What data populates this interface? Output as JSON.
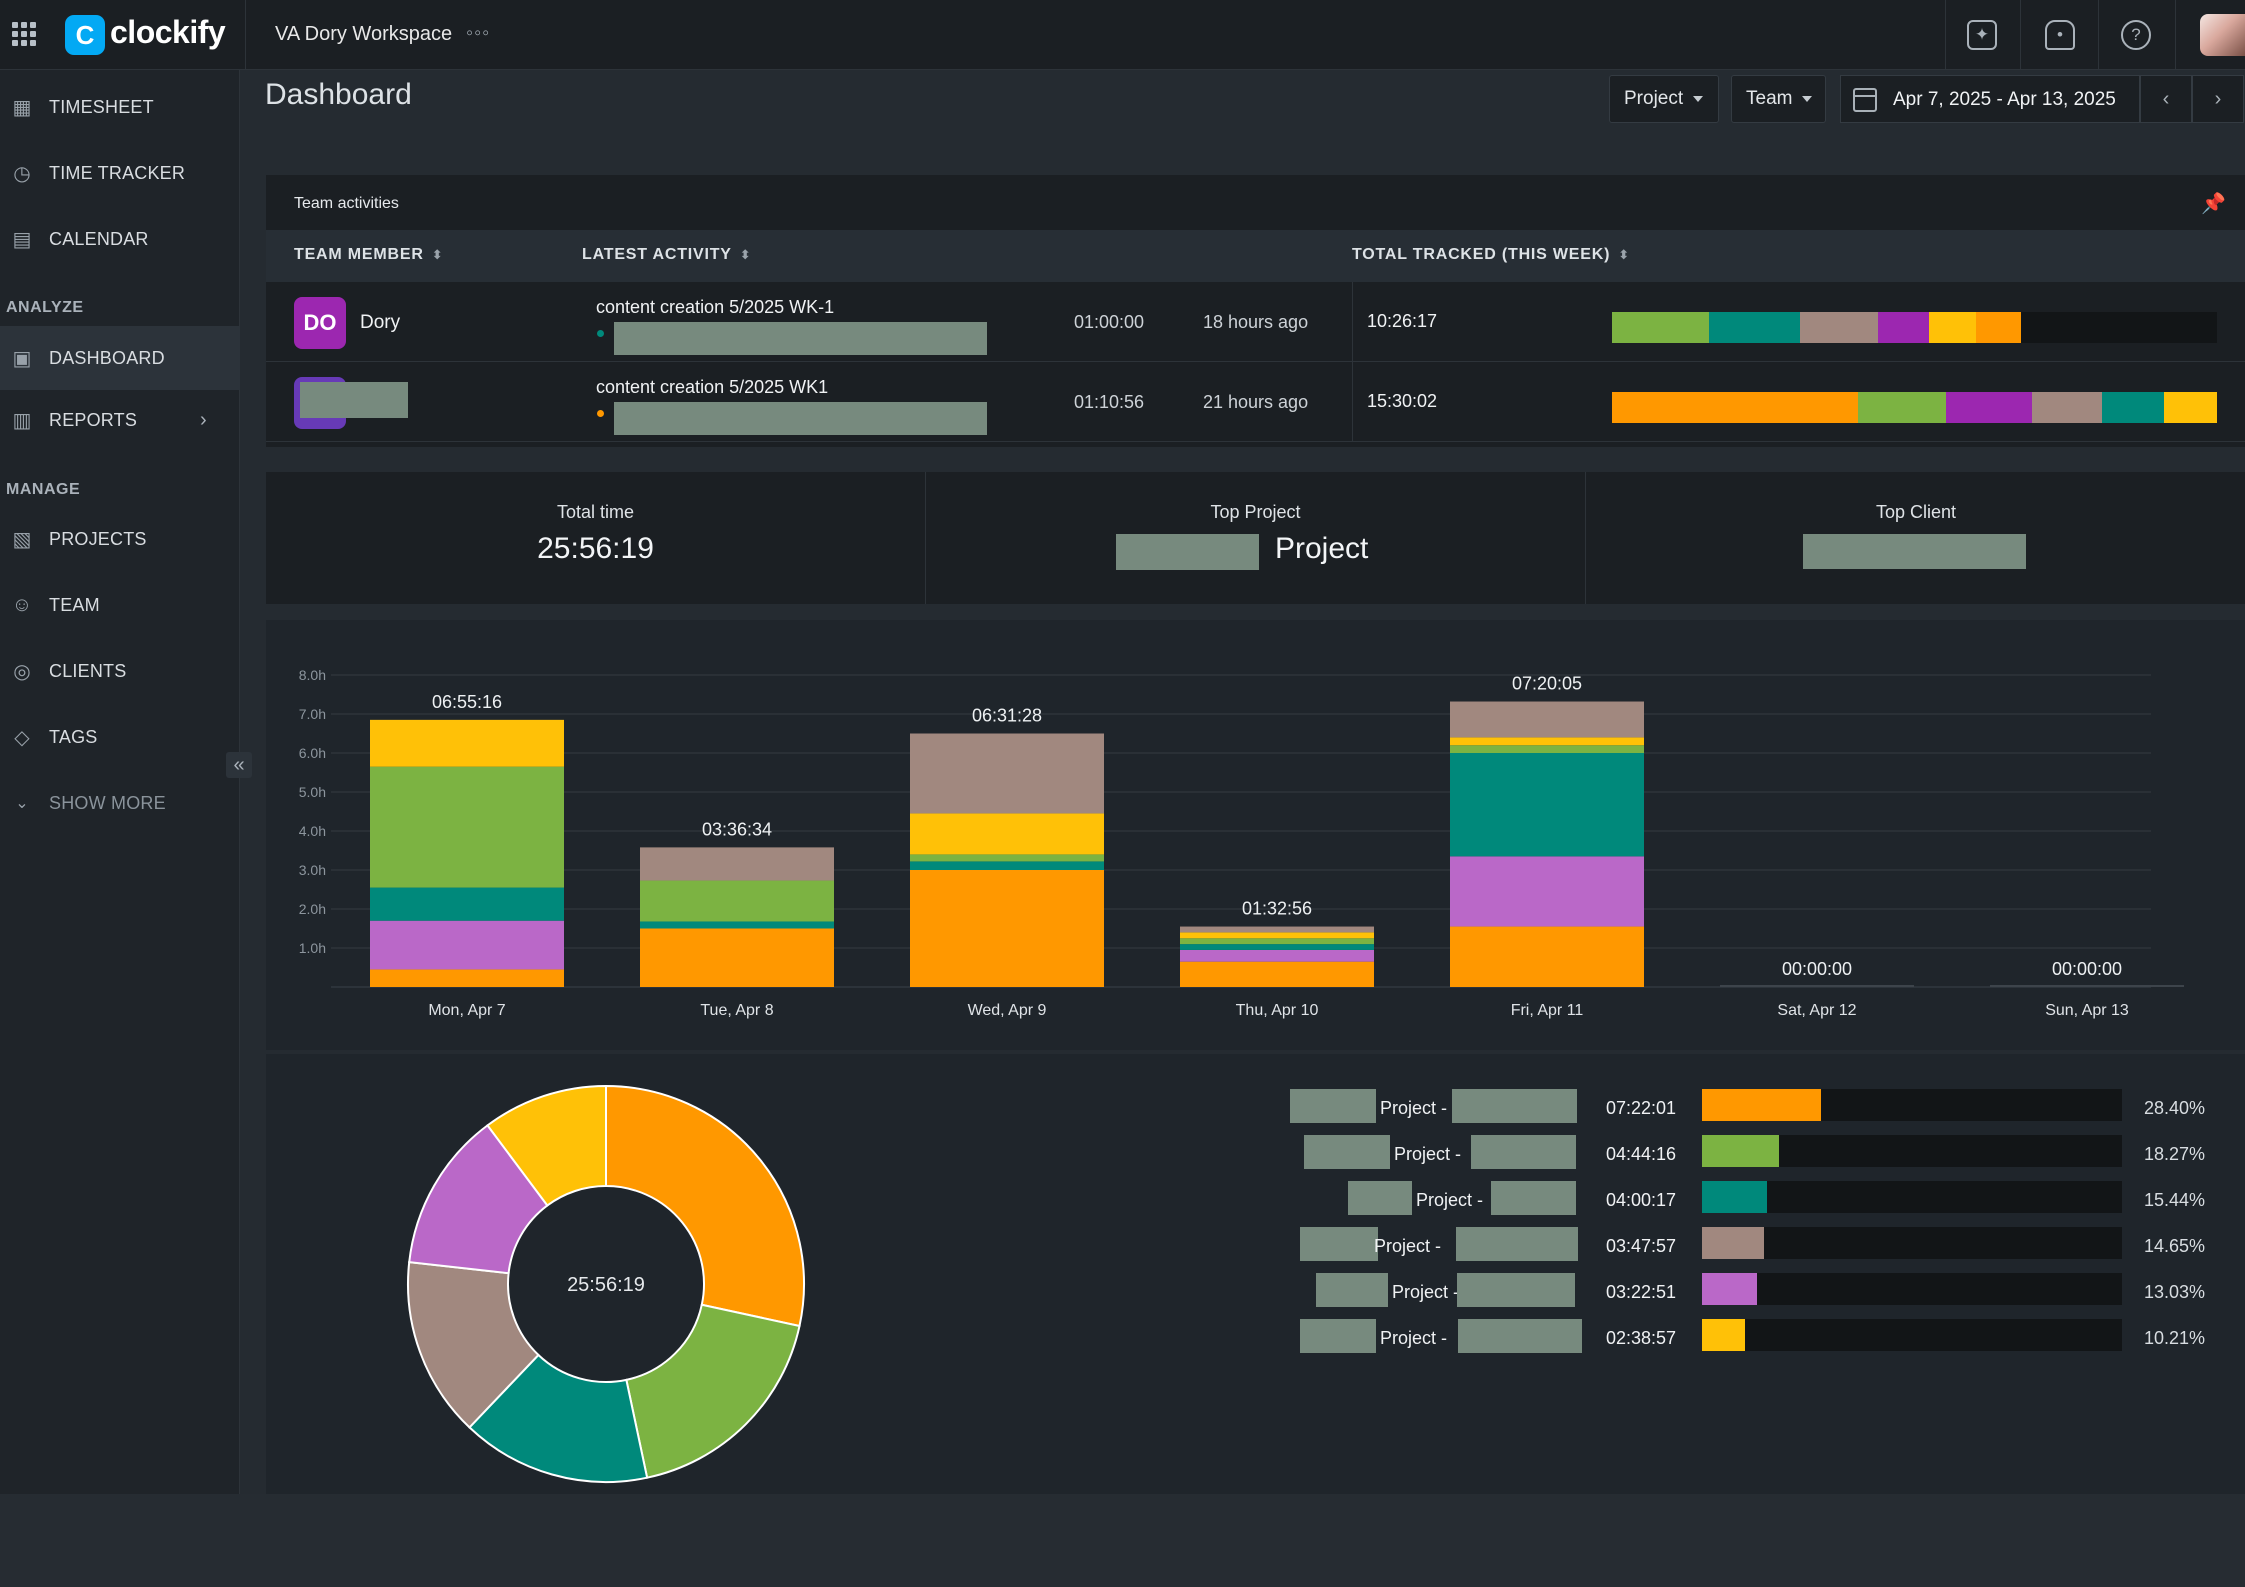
{
  "app": {
    "name": "clockify",
    "workspace": "VA Dory Workspace",
    "workspace_more": "◦◦◦"
  },
  "colors": {
    "orange": "#ff9800",
    "light_green": "#7cb342",
    "teal": "#00897b",
    "taupe": "#a1887f",
    "purple": "#ba68c8",
    "amber": "#ffc107",
    "magenta": "#9c27b0",
    "accent": "#03a9f4"
  },
  "sidebar": {
    "items": [
      {
        "label": "TIMESHEET",
        "icon": "timesheet-icon"
      },
      {
        "label": "TIME TRACKER",
        "icon": "clock-icon"
      },
      {
        "label": "CALENDAR",
        "icon": "calendar-icon"
      },
      {
        "label": "DASHBOARD",
        "icon": "dashboard-icon"
      },
      {
        "label": "REPORTS",
        "icon": "reports-icon"
      },
      {
        "label": "PROJECTS",
        "icon": "projects-icon"
      },
      {
        "label": "TEAM",
        "icon": "team-icon"
      },
      {
        "label": "CLIENTS",
        "icon": "clients-icon"
      },
      {
        "label": "TAGS",
        "icon": "tag-icon"
      },
      {
        "label": "SHOW MORE",
        "icon": "chevron-down-icon"
      }
    ],
    "sections": {
      "analyze": "ANALYZE",
      "manage": "MANAGE"
    }
  },
  "header": {
    "title": "Dashboard",
    "filters": {
      "project": "Project",
      "team": "Team"
    },
    "date_range": "Apr 7, 2025 - Apr 13, 2025"
  },
  "team_activities": {
    "title": "Team activities",
    "columns": {
      "member": "TEAM MEMBER",
      "latest": "LATEST ACTIVITY",
      "total": "TOTAL TRACKED (THIS WEEK)"
    },
    "rows": [
      {
        "initials": "DO",
        "name": "Dory",
        "activity": "content creation 5/2025 WK-1",
        "duration": "01:00:00",
        "ago": "18 hours ago",
        "total": "10:26:17",
        "dot_color": "#00897b"
      },
      {
        "initials": "",
        "name": "",
        "activity": "content creation 5/2025 WK1",
        "duration": "01:10:56",
        "ago": "21 hours ago",
        "total": "15:30:02",
        "dot_color": "#ff9800"
      }
    ]
  },
  "summary": {
    "total_label": "Total time",
    "total_value": "25:56:19",
    "top_project_label": "Top Project",
    "top_project_value": "Project",
    "top_client_label": "Top Client"
  },
  "chart_data": [
    {
      "type": "bar",
      "stacked": true,
      "categories": [
        "Mon, Apr 7",
        "Tue, Apr 8",
        "Wed, Apr 9",
        "Thu, Apr 10",
        "Fri, Apr 11",
        "Sat, Apr 12",
        "Sun, Apr 13"
      ],
      "totals_labels": [
        "06:55:16",
        "03:36:34",
        "06:31:28",
        "01:32:56",
        "07:20:05",
        "00:00:00",
        "00:00:00"
      ],
      "series": [
        {
          "color": "#ff9800",
          "values": [
            0.45,
            1.5,
            3.0,
            0.65,
            1.55,
            0,
            0
          ]
        },
        {
          "color": "#ba68c8",
          "values": [
            1.25,
            0,
            0,
            0.3,
            1.8,
            0,
            0
          ]
        },
        {
          "color": "#00897b",
          "values": [
            0.85,
            0.18,
            0.22,
            0.15,
            2.65,
            0,
            0
          ]
        },
        {
          "color": "#7cb342",
          "values": [
            3.1,
            1.05,
            0.18,
            0.15,
            0.2,
            0,
            0
          ]
        },
        {
          "color": "#ffc107",
          "values": [
            1.2,
            0,
            1.05,
            0.15,
            0.2,
            0,
            0
          ]
        },
        {
          "color": "#a1887f",
          "values": [
            0,
            0.85,
            2.05,
            0.15,
            0.92,
            0,
            0
          ]
        }
      ],
      "ylim": [
        0,
        8
      ],
      "yticks": [
        "1.0h",
        "2.0h",
        "3.0h",
        "4.0h",
        "5.0h",
        "6.0h",
        "7.0h",
        "8.0h"
      ],
      "grid": true
    },
    {
      "type": "pie",
      "donut": true,
      "center_label": "25:56:19",
      "values": [
        28.4,
        18.27,
        15.44,
        14.65,
        13.03,
        10.21
      ],
      "colors": [
        "#ff9800",
        "#7cb342",
        "#00897b",
        "#a1887f",
        "#ba68c8",
        "#ffc107"
      ]
    }
  ],
  "breakdown": [
    {
      "label": "Project -",
      "time": "07:22:01",
      "pct": "28.40%",
      "fraction": 0.284,
      "color": "#ff9800"
    },
    {
      "label": "Project -",
      "time": "04:44:16",
      "pct": "18.27%",
      "fraction": 0.1827,
      "color": "#7cb342"
    },
    {
      "label": "Project -",
      "time": "04:00:17",
      "pct": "15.44%",
      "fraction": 0.1544,
      "color": "#00897b"
    },
    {
      "label": "Project -",
      "time": "03:47:57",
      "pct": "14.65%",
      "fraction": 0.1465,
      "color": "#a1887f"
    },
    {
      "label": "Project -",
      "time": "03:22:51",
      "pct": "13.03%",
      "fraction": 0.1303,
      "color": "#ba68c8"
    },
    {
      "label": "Project -",
      "time": "02:38:57",
      "pct": "10.21%",
      "fraction": 0.1021,
      "color": "#ffc107"
    }
  ]
}
